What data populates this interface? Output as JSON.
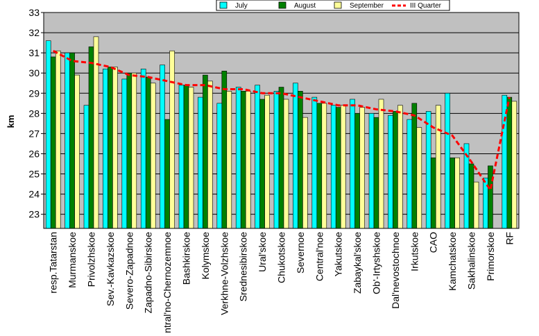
{
  "chart_data": {
    "type": "bar",
    "ylabel": "km",
    "xlabel": "",
    "title": "",
    "ylim": [
      22.3,
      33
    ],
    "yticks": [
      23,
      24,
      25,
      26,
      27,
      28,
      29,
      30,
      31,
      32,
      33
    ],
    "grid": true,
    "legend_position": "top-right",
    "plot_background": "#c0c0c0",
    "categories": [
      "resp.Tatarstan",
      "Murmanskoe",
      "Privolzhskoe",
      "Sev.-Kavkazskoe",
      "Severo-Zapadnoe",
      "Zapadno-Sibirskoe",
      "Central'no-Chernozemnoe",
      "Bashkirskoe",
      "Kolymskoe",
      "Verkhne-Volzhskoe",
      "Srednesibirskoe",
      "Ural'skoe",
      "Chukotskoe",
      "Severnoe",
      "Central'noe",
      "Yakutskoe",
      "Zabaykal'skoe",
      "Ob'-Irtyshskoe",
      "Dal'nevostochnoe",
      "Irkutskoe",
      "CAO",
      "Kamchatskoe",
      "Sakhalinskoe",
      "Primorskoe",
      "RF"
    ],
    "series": [
      {
        "name": "July",
        "type": "bar",
        "color": "#00ffff",
        "values": [
          31.6,
          31.0,
          28.4,
          30.2,
          29.7,
          30.2,
          30.4,
          29.4,
          28.8,
          28.5,
          29.3,
          29.4,
          29.1,
          29.5,
          28.8,
          28.4,
          28.7,
          28.0,
          27.9,
          27.7,
          28.1,
          29.0,
          26.5,
          24.8,
          28.9
        ]
      },
      {
        "name": "August",
        "type": "bar",
        "color": "#008000",
        "values": [
          30.8,
          31.0,
          31.3,
          30.3,
          30.0,
          29.8,
          27.7,
          29.4,
          29.9,
          30.1,
          29.1,
          28.7,
          29.3,
          29.1,
          28.5,
          28.3,
          28.0,
          27.8,
          28.1,
          28.5,
          25.8,
          25.8,
          25.5,
          25.4,
          28.8
        ]
      },
      {
        "name": "September",
        "type": "bar",
        "color": "#ffff99",
        "values": [
          31.1,
          29.9,
          31.8,
          30.3,
          30.0,
          29.5,
          31.1,
          29.3,
          29.6,
          29.1,
          29.1,
          28.9,
          28.7,
          27.8,
          28.5,
          28.4,
          28.3,
          28.7,
          28.4,
          27.3,
          28.4,
          25.8,
          24.6,
          22.3,
          28.6
        ]
      },
      {
        "name": "III Quarter",
        "type": "line",
        "style": "dashed",
        "color": "#ff0000",
        "values": [
          31.1,
          30.6,
          30.5,
          30.3,
          29.9,
          29.8,
          29.6,
          29.4,
          29.4,
          29.2,
          29.2,
          29.0,
          29.0,
          28.8,
          28.6,
          28.4,
          28.4,
          28.2,
          28.1,
          27.9,
          27.3,
          26.9,
          25.6,
          24.2,
          28.8
        ]
      }
    ]
  }
}
